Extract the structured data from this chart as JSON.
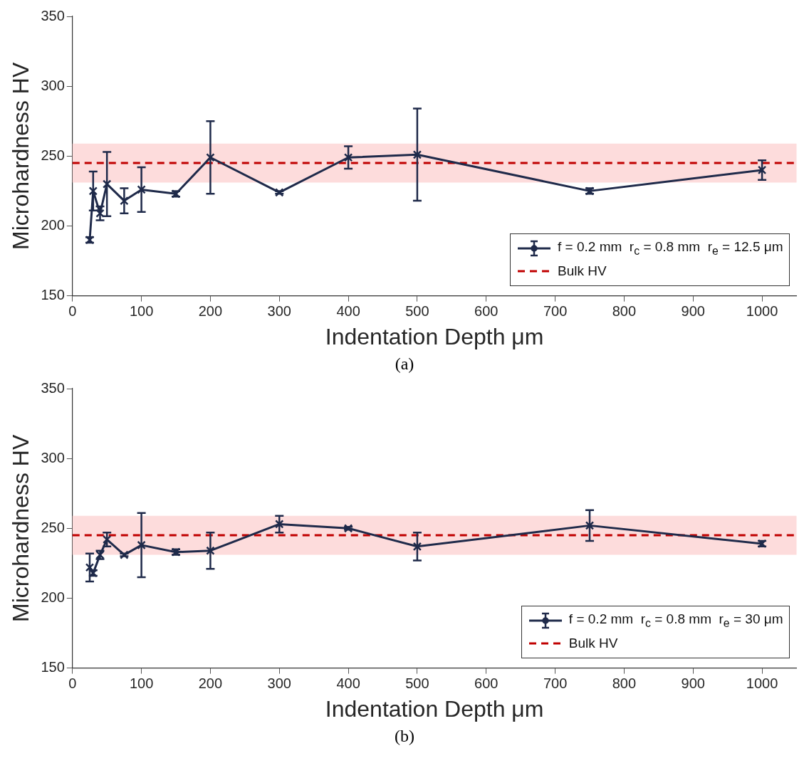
{
  "chart_data": [
    {
      "type": "line",
      "xlabel": "Indentation Depth μm",
      "ylabel": "Microhardness HV",
      "x": [
        25,
        30,
        40,
        50,
        75,
        100,
        150,
        200,
        300,
        400,
        500,
        750,
        1000
      ],
      "series": [
        {
          "name": "f = 0.2 mm  r$_{c}$ = 0.8 mm  r$_{e}$ = 12.5 μm",
          "color": "#1f2a4a",
          "values": [
            190,
            225,
            209,
            230,
            218,
            226,
            223,
            249,
            224,
            249,
            251,
            225,
            240
          ],
          "errors": [
            2,
            14,
            5,
            23,
            9,
            16,
            2,
            26,
            1,
            8,
            33,
            2,
            7
          ]
        }
      ],
      "ref_lines": [
        {
          "axis": "y",
          "value": 245,
          "label": "Bulk HV",
          "color": "#c00000",
          "line_style": "dashed"
        }
      ],
      "bands": [
        {
          "axis": "y",
          "from": 231,
          "to": 259,
          "color": "#fddcdc"
        }
      ],
      "xlim": [
        0,
        1050
      ],
      "xticks": [
        0,
        100,
        200,
        300,
        400,
        500,
        600,
        700,
        800,
        900,
        1000
      ],
      "ylim": [
        150,
        350
      ],
      "yticks": [
        150,
        200,
        250,
        300,
        350
      ],
      "grid": false,
      "legend": "bottom right",
      "marker": "cross",
      "line_style": "solid",
      "annotations": [
        "(a)"
      ]
    },
    {
      "type": "line",
      "xlabel": "Indentation Depth μm",
      "ylabel": "Microhardness HV",
      "x": [
        25,
        30,
        40,
        50,
        75,
        100,
        150,
        200,
        300,
        400,
        500,
        750,
        1000
      ],
      "series": [
        {
          "name": "f = 0.2 mm  r$_{c}$ = 0.8 mm  r$_{e}$ = 30 μm",
          "color": "#1f2a4a",
          "values": [
            222,
            218,
            231,
            242,
            231,
            238,
            233,
            234,
            253,
            250,
            237,
            252,
            239
          ],
          "errors": [
            10,
            2,
            3,
            5,
            1,
            23,
            2,
            13,
            6,
            1,
            10,
            11,
            2
          ]
        }
      ],
      "ref_lines": [
        {
          "axis": "y",
          "value": 245,
          "label": "Bulk HV",
          "color": "#c00000",
          "line_style": "dashed"
        }
      ],
      "bands": [
        {
          "axis": "y",
          "from": 231,
          "to": 259,
          "color": "#fddcdc"
        }
      ],
      "xlim": [
        0,
        1050
      ],
      "xticks": [
        0,
        100,
        200,
        300,
        400,
        500,
        600,
        700,
        800,
        900,
        1000
      ],
      "ylim": [
        150,
        350
      ],
      "yticks": [
        150,
        200,
        250,
        300,
        350
      ],
      "grid": false,
      "legend": "bottom right",
      "marker": "cross",
      "line_style": "solid",
      "annotations": [
        "(b)"
      ]
    }
  ]
}
